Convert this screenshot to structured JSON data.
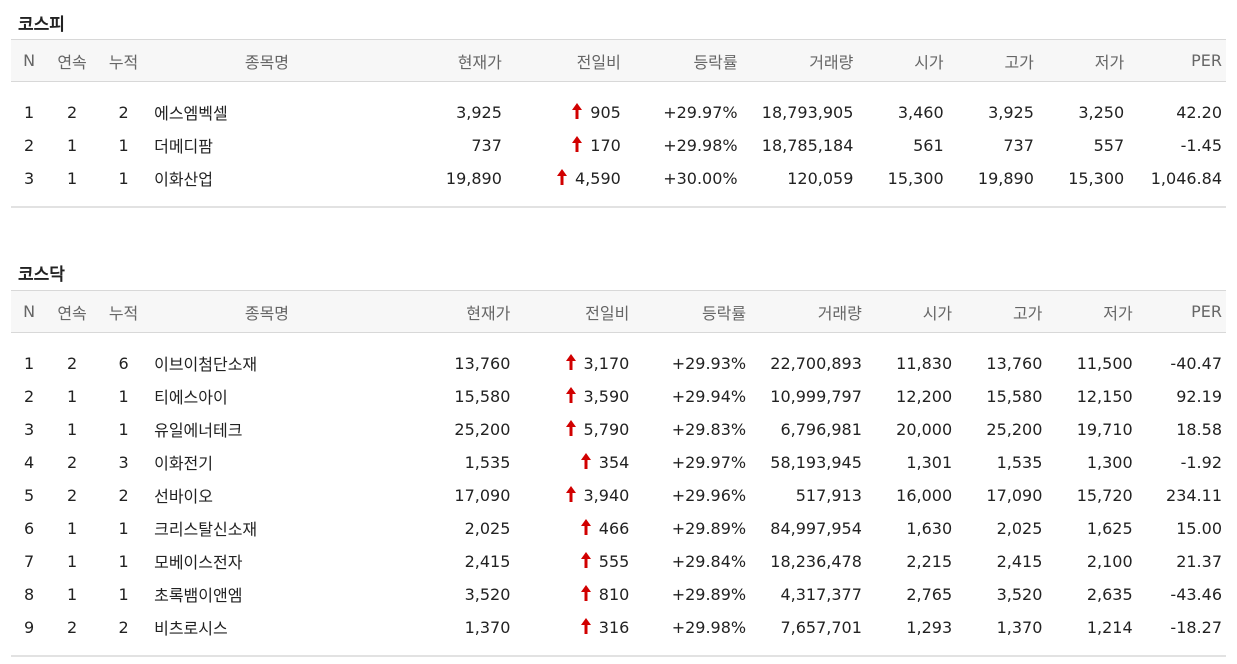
{
  "columns": [
    "N",
    "연속",
    "누적",
    "종목명",
    "현재가",
    "전일비",
    "등락률",
    "거래량",
    "시가",
    "고가",
    "저가",
    "PER"
  ],
  "colors": {
    "up": "#d10000"
  },
  "sections": [
    {
      "title": "코스피",
      "rows": [
        {
          "n": "1",
          "streak": "2",
          "total": "2",
          "name": "에스엠벡셀",
          "price": "3,925",
          "change": "905",
          "rate": "+29.97%",
          "volume": "18,793,905",
          "open": "3,460",
          "high": "3,925",
          "low": "3,250",
          "per": "42.20"
        },
        {
          "n": "2",
          "streak": "1",
          "total": "1",
          "name": "더메디팜",
          "price": "737",
          "change": "170",
          "rate": "+29.98%",
          "volume": "18,785,184",
          "open": "561",
          "high": "737",
          "low": "557",
          "per": "-1.45"
        },
        {
          "n": "3",
          "streak": "1",
          "total": "1",
          "name": "이화산업",
          "price": "19,890",
          "change": "4,590",
          "rate": "+30.00%",
          "volume": "120,059",
          "open": "15,300",
          "high": "19,890",
          "low": "15,300",
          "per": "1,046.84"
        }
      ]
    },
    {
      "title": "코스닥",
      "rows": [
        {
          "n": "1",
          "streak": "2",
          "total": "6",
          "name": "이브이첨단소재",
          "price": "13,760",
          "change": "3,170",
          "rate": "+29.93%",
          "volume": "22,700,893",
          "open": "11,830",
          "high": "13,760",
          "low": "11,500",
          "per": "-40.47"
        },
        {
          "n": "2",
          "streak": "1",
          "total": "1",
          "name": "티에스아이",
          "price": "15,580",
          "change": "3,590",
          "rate": "+29.94%",
          "volume": "10,999,797",
          "open": "12,200",
          "high": "15,580",
          "low": "12,150",
          "per": "92.19"
        },
        {
          "n": "3",
          "streak": "1",
          "total": "1",
          "name": "유일에너테크",
          "price": "25,200",
          "change": "5,790",
          "rate": "+29.83%",
          "volume": "6,796,981",
          "open": "20,000",
          "high": "25,200",
          "low": "19,710",
          "per": "18.58"
        },
        {
          "n": "4",
          "streak": "2",
          "total": "3",
          "name": "이화전기",
          "price": "1,535",
          "change": "354",
          "rate": "+29.97%",
          "volume": "58,193,945",
          "open": "1,301",
          "high": "1,535",
          "low": "1,300",
          "per": "-1.92"
        },
        {
          "n": "5",
          "streak": "2",
          "total": "2",
          "name": "선바이오",
          "price": "17,090",
          "change": "3,940",
          "rate": "+29.96%",
          "volume": "517,913",
          "open": "16,000",
          "high": "17,090",
          "low": "15,720",
          "per": "234.11"
        },
        {
          "n": "6",
          "streak": "1",
          "total": "1",
          "name": "크리스탈신소재",
          "price": "2,025",
          "change": "466",
          "rate": "+29.89%",
          "volume": "84,997,954",
          "open": "1,630",
          "high": "2,025",
          "low": "1,625",
          "per": "15.00"
        },
        {
          "n": "7",
          "streak": "1",
          "total": "1",
          "name": "모베이스전자",
          "price": "2,415",
          "change": "555",
          "rate": "+29.84%",
          "volume": "18,236,478",
          "open": "2,215",
          "high": "2,415",
          "low": "2,100",
          "per": "21.37"
        },
        {
          "n": "8",
          "streak": "1",
          "total": "1",
          "name": "초록뱀이앤엠",
          "price": "3,520",
          "change": "810",
          "rate": "+29.89%",
          "volume": "4,317,377",
          "open": "2,765",
          "high": "3,520",
          "low": "2,635",
          "per": "-43.46"
        },
        {
          "n": "9",
          "streak": "2",
          "total": "2",
          "name": "비츠로시스",
          "price": "1,370",
          "change": "316",
          "rate": "+29.98%",
          "volume": "7,657,701",
          "open": "1,293",
          "high": "1,370",
          "low": "1,214",
          "per": "-18.27"
        }
      ]
    }
  ]
}
